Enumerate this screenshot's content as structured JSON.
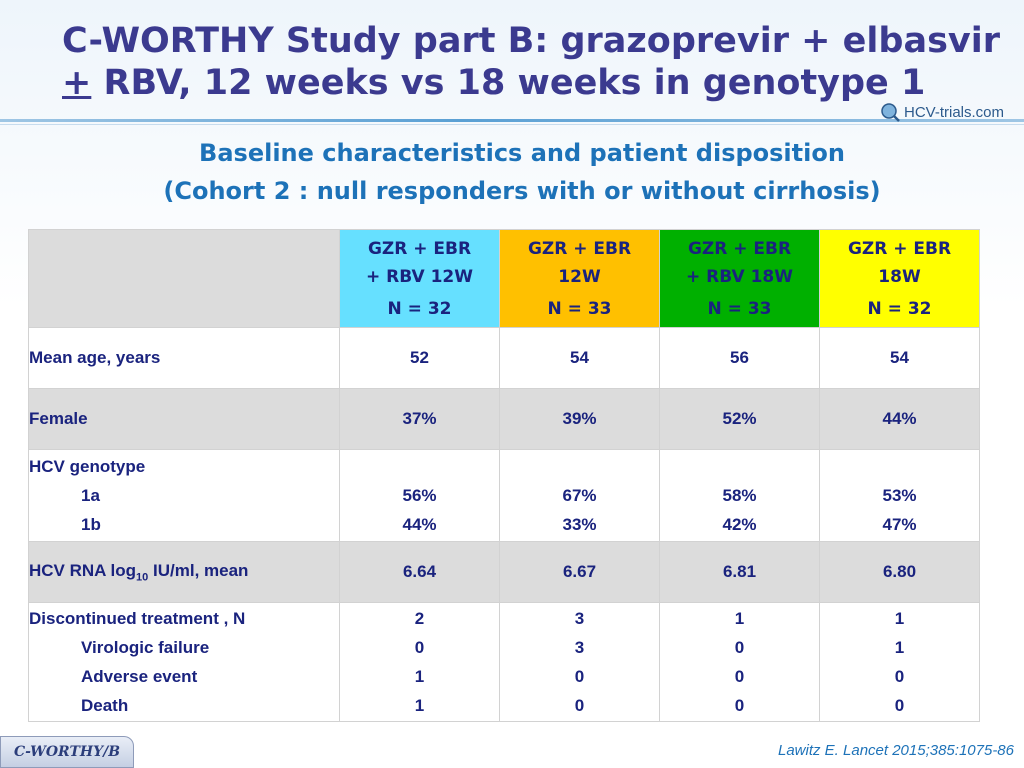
{
  "title": {
    "line1": "C-WORTHY Study part B: grazoprevir + elbasvir",
    "line2_pm": "+",
    "line2_rest": " RBV, 12 weeks vs 18 weeks in genotype 1"
  },
  "logo": {
    "text": "HCV-trials.com"
  },
  "subtitle": {
    "line1": "Baseline characteristics and patient disposition",
    "line2": "(Cohort 2 : null responders with or without cirrhosis)"
  },
  "table": {
    "headers": [
      {
        "line1": "GZR + EBR",
        "line2": "+ RBV 12W",
        "n": "N = 32",
        "color": "#66e0ff"
      },
      {
        "line1": "GZR + EBR",
        "line2": "12W",
        "n": "N = 33",
        "color": "#ffc000"
      },
      {
        "line1": "GZR + EBR",
        "line2": "+ RBV 18W",
        "n": "N = 33",
        "color": "#00b000"
      },
      {
        "line1": "GZR + EBR",
        "line2": "18W",
        "n": "N = 32",
        "color": "#ffff00"
      }
    ],
    "age": {
      "label": "Mean age, years",
      "values": [
        "52",
        "54",
        "56",
        "54"
      ]
    },
    "female": {
      "label": "Female",
      "values": [
        "37%",
        "39%",
        "52%",
        "44%"
      ]
    },
    "genotype": {
      "label": "HCV genotype",
      "sub1": "1a",
      "sub2": "1b",
      "values_1a": [
        "56%",
        "67%",
        "58%",
        "53%"
      ],
      "values_1b": [
        "44%",
        "33%",
        "42%",
        "47%"
      ]
    },
    "rna": {
      "label_pre": "HCV RNA log",
      "label_sub": "10",
      "label_post": " IU/ml, mean",
      "values": [
        "6.64",
        "6.67",
        "6.81",
        "6.80"
      ]
    },
    "discontinued": {
      "label": "Discontinued treatment , N",
      "sub1": "Virologic failure",
      "sub2": "Adverse event",
      "sub3": "Death",
      "total": [
        "2",
        "3",
        "1",
        "1"
      ],
      "virologic": [
        "0",
        "3",
        "0",
        "1"
      ],
      "adverse": [
        "1",
        "0",
        "0",
        "0"
      ],
      "death": [
        "1",
        "0",
        "0",
        "0"
      ]
    }
  },
  "footer": {
    "tab": "C-WORTHY/B",
    "citation": "Lawitz E. Lancet 2015;385:1075-86"
  }
}
